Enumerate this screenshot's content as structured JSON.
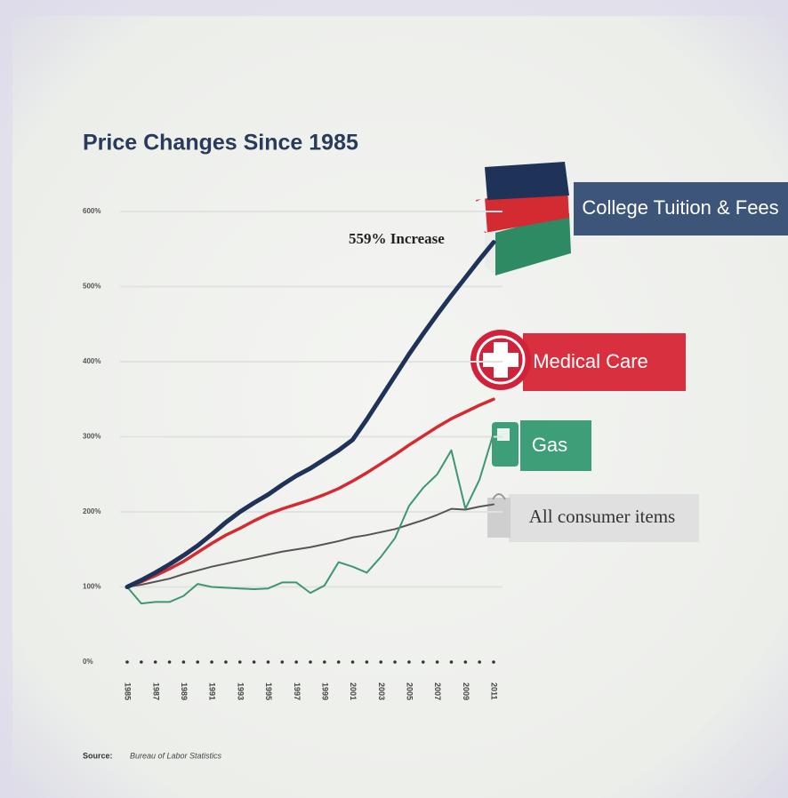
{
  "chart_data": {
    "type": "line",
    "title": "Price Changes Since 1985",
    "annotation": "559% Increase",
    "source_label": "Source:",
    "source_text": "Bureau of Labor Statistics",
    "x": [
      1985,
      1986,
      1987,
      1988,
      1989,
      1990,
      1991,
      1992,
      1993,
      1994,
      1995,
      1996,
      1997,
      1998,
      1999,
      2000,
      2001,
      2002,
      2003,
      2004,
      2005,
      2006,
      2007,
      2008,
      2009,
      2010,
      2011
    ],
    "xlim": [
      1985,
      2011
    ],
    "xticks": [
      1985,
      1987,
      1989,
      1991,
      1993,
      1995,
      1997,
      1999,
      2001,
      2003,
      2005,
      2007,
      2009,
      2011
    ],
    "ylim": [
      0,
      600
    ],
    "yticks": [
      {
        "value": 0,
        "label": "0%"
      },
      {
        "value": 100,
        "label": "100%"
      },
      {
        "value": 200,
        "label": "200%"
      },
      {
        "value": 300,
        "label": "300%"
      },
      {
        "value": 400,
        "label": "400%"
      },
      {
        "value": 500,
        "label": "500%"
      },
      {
        "value": 600,
        "label": "600%"
      }
    ],
    "grid": true,
    "series": [
      {
        "name": "College Tuition & Fees",
        "color": "#1f3358",
        "values": [
          100,
          109,
          119,
          130,
          142,
          155,
          170,
          186,
          200,
          212,
          223,
          236,
          248,
          258,
          270,
          282,
          296,
          323,
          352,
          381,
          410,
          437,
          463,
          488,
          512,
          536,
          559
        ]
      },
      {
        "name": "Medical Care",
        "color": "#d42a32",
        "values": [
          100,
          107,
          115,
          124,
          134,
          146,
          158,
          169,
          178,
          188,
          197,
          204,
          210,
          216,
          223,
          231,
          241,
          252,
          264,
          276,
          289,
          301,
          313,
          324,
          333,
          342,
          350
        ]
      },
      {
        "name": "Gas",
        "color": "#3e9672",
        "values": [
          100,
          78,
          80,
          80,
          88,
          104,
          100,
          99,
          98,
          97,
          98,
          106,
          106,
          92,
          102,
          133,
          127,
          119,
          140,
          165,
          208,
          232,
          250,
          282,
          204,
          243,
          305
        ]
      },
      {
        "name": "All consumer items",
        "color": "#555555",
        "values": [
          100,
          103,
          107,
          111,
          117,
          122,
          127,
          131,
          135,
          139,
          143,
          147,
          150,
          153,
          157,
          161,
          166,
          169,
          173,
          177,
          183,
          189,
          196,
          204,
          203,
          207,
          210
        ]
      }
    ]
  }
}
